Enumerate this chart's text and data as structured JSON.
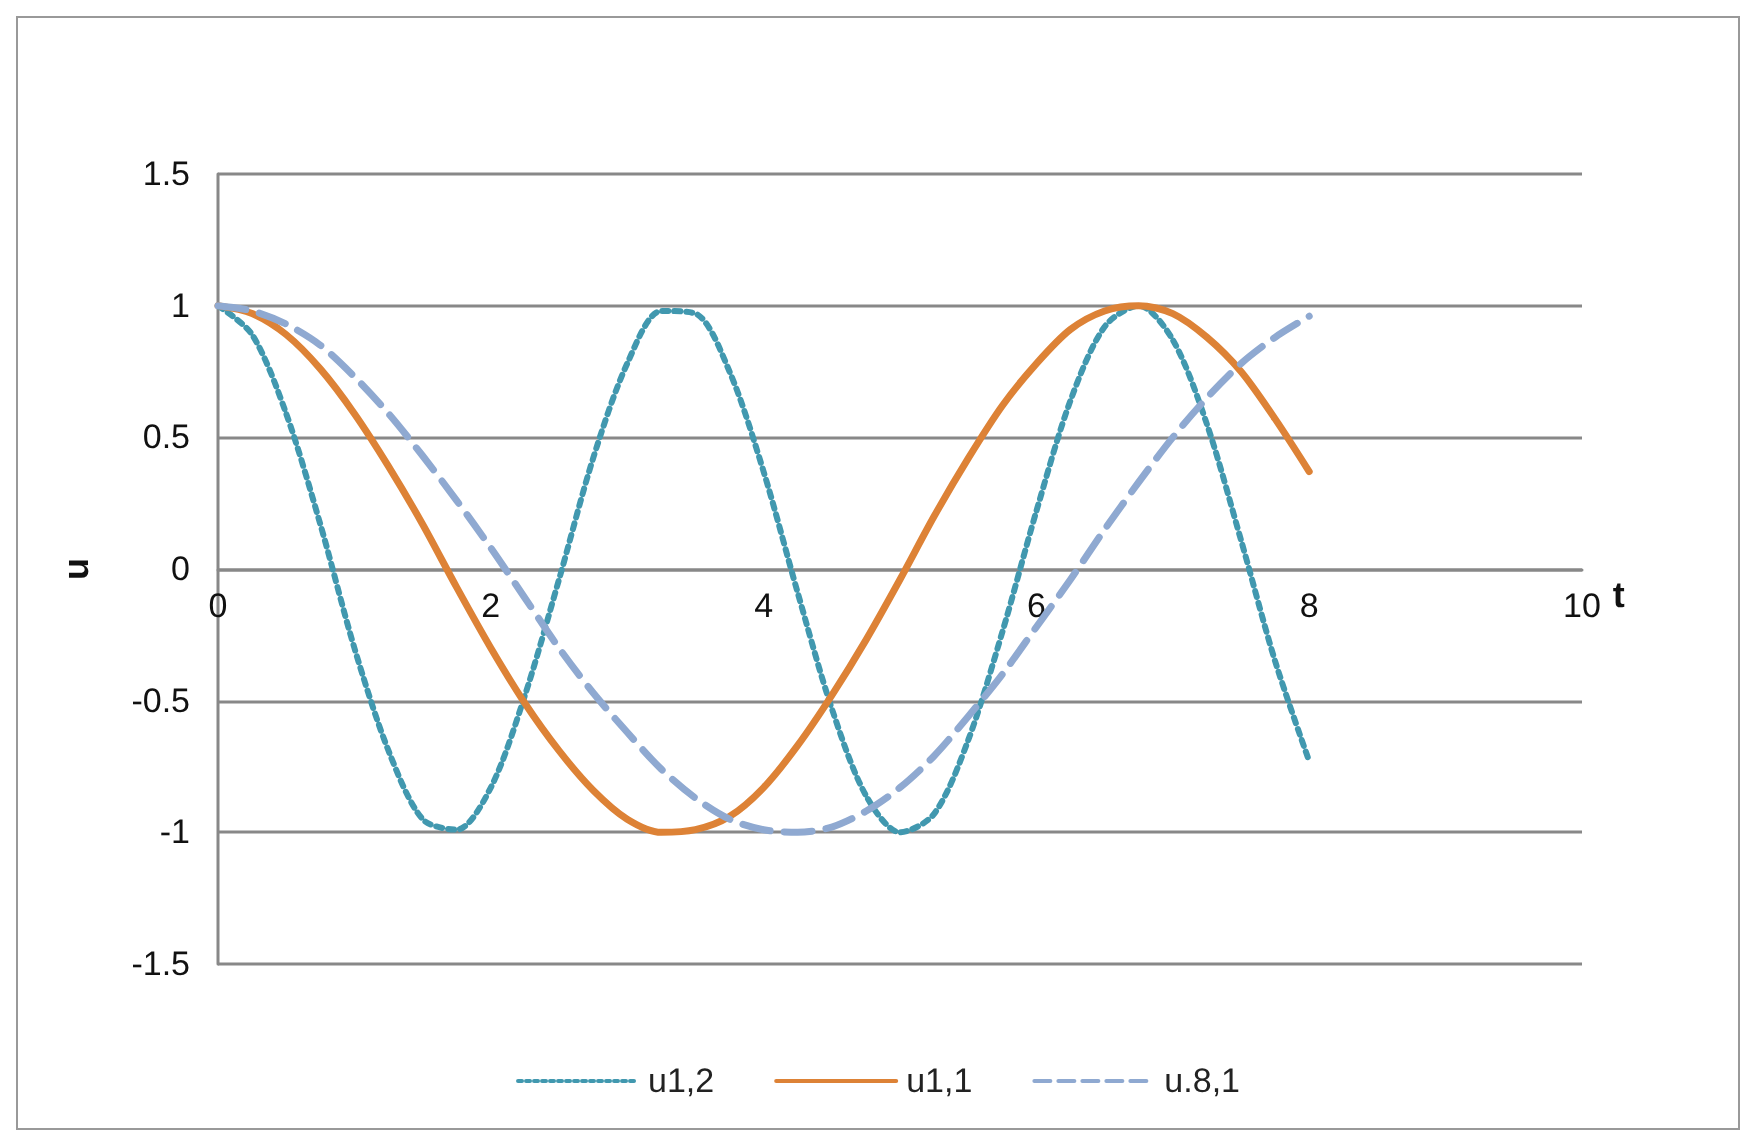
{
  "chart_data": {
    "type": "line",
    "xlabel": "t",
    "ylabel": "u",
    "x": [
      0,
      0.25,
      0.5,
      0.75,
      1,
      1.25,
      1.5,
      1.75,
      2,
      2.25,
      2.5,
      2.75,
      3,
      3.25,
      3.5,
      3.75,
      4,
      4.25,
      4.5,
      4.75,
      5,
      5.25,
      5.5,
      5.75,
      6,
      6.25,
      6.5,
      6.75,
      7,
      7.25,
      7.5,
      7.75,
      8
    ],
    "series": [
      {
        "name": "u1,2",
        "color": "#4198af",
        "line_style": "dotted",
        "values": [
          1,
          0.89,
          0.59,
          0.17,
          -0.3,
          -0.69,
          -0.95,
          -0.99,
          -0.83,
          -0.48,
          -0.04,
          0.42,
          0.78,
          0.98,
          0.97,
          0.75,
          0.37,
          -0.09,
          -0.53,
          -0.86,
          -1,
          -0.93,
          -0.65,
          -0.24,
          0.22,
          0.64,
          0.92,
          1,
          0.87,
          0.55,
          0.11,
          -0.35,
          -0.73
        ]
      },
      {
        "name": "u1,1",
        "color": "#dd8236",
        "line_style": "solid",
        "values": [
          1,
          0.97,
          0.89,
          0.76,
          0.59,
          0.39,
          0.17,
          -0.07,
          -0.3,
          -0.51,
          -0.69,
          -0.84,
          -0.95,
          -1,
          -0.99,
          -0.94,
          -0.83,
          -0.67,
          -0.48,
          -0.27,
          -0.04,
          0.2,
          0.42,
          0.62,
          0.78,
          0.91,
          0.98,
          1,
          0.97,
          0.88,
          0.75,
          0.57,
          0.37
        ]
      },
      {
        "name": "u.8,1",
        "color": "#8fa9d1",
        "line_style": "dashed",
        "values": [
          1,
          0.98,
          0.93,
          0.85,
          0.73,
          0.59,
          0.43,
          0.26,
          0.08,
          -0.11,
          -0.3,
          -0.47,
          -0.62,
          -0.76,
          -0.87,
          -0.95,
          -0.99,
          -1,
          -0.98,
          -0.92,
          -0.83,
          -0.71,
          -0.56,
          -0.4,
          -0.22,
          -0.04,
          0.15,
          0.33,
          0.5,
          0.65,
          0.78,
          0.88,
          0.96
        ]
      }
    ],
    "xlim": [
      0,
      10
    ],
    "xticks": [
      0,
      2,
      4,
      6,
      8,
      10
    ],
    "ylim": [
      -1.5,
      1.5
    ],
    "yticks": [
      -1.5,
      -1,
      -0.5,
      0,
      0.5,
      1,
      1.5
    ],
    "grid": "y",
    "legend": "bottom"
  }
}
